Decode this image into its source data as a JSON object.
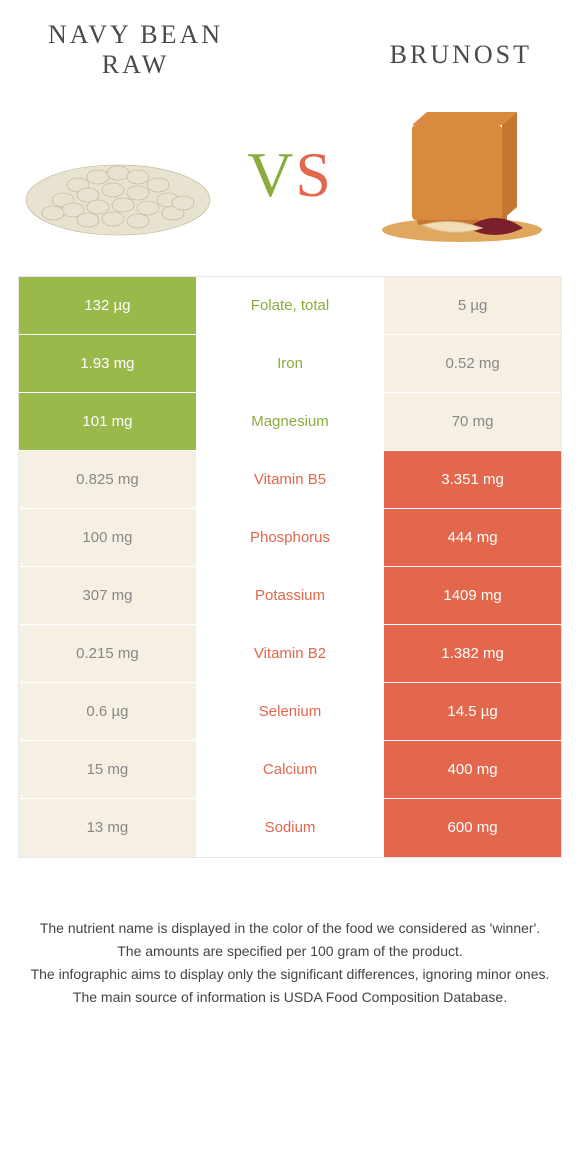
{
  "colors": {
    "green": "#99b94b",
    "orange": "#e2674c",
    "pale": "#f6f0e4",
    "green_text": "#8aac3e",
    "orange_text": "#e2674c"
  },
  "header": {
    "left_title": "NAVY BEAN\nRAW",
    "right_title": "BRUNOST",
    "vs_v": "V",
    "vs_s": "S"
  },
  "rows": [
    {
      "left": "132 µg",
      "label": "Folate, total",
      "right": "5 µg",
      "winner": "left"
    },
    {
      "left": "1.93 mg",
      "label": "Iron",
      "right": "0.52 mg",
      "winner": "left"
    },
    {
      "left": "101 mg",
      "label": "Magnesium",
      "right": "70 mg",
      "winner": "left"
    },
    {
      "left": "0.825 mg",
      "label": "Vitamin B5",
      "right": "3.351 mg",
      "winner": "right"
    },
    {
      "left": "100 mg",
      "label": "Phosphorus",
      "right": "444 mg",
      "winner": "right"
    },
    {
      "left": "307 mg",
      "label": "Potassium",
      "right": "1409 mg",
      "winner": "right"
    },
    {
      "left": "0.215 mg",
      "label": "Vitamin B2",
      "right": "1.382 mg",
      "winner": "right"
    },
    {
      "left": "0.6 µg",
      "label": "Selenium",
      "right": "14.5 µg",
      "winner": "right"
    },
    {
      "left": "15 mg",
      "label": "Calcium",
      "right": "400 mg",
      "winner": "right"
    },
    {
      "left": "13 mg",
      "label": "Sodium",
      "right": "600 mg",
      "winner": "right"
    }
  ],
  "footer": {
    "line1": "The nutrient name is displayed in the color of the food we considered as 'winner'.",
    "line2": "The amounts are specified per 100 gram of the product.",
    "line3": "The infographic aims to display only the significant differences, ignoring minor ones.",
    "line4": "The main source of information is USDA Food Composition Database."
  }
}
